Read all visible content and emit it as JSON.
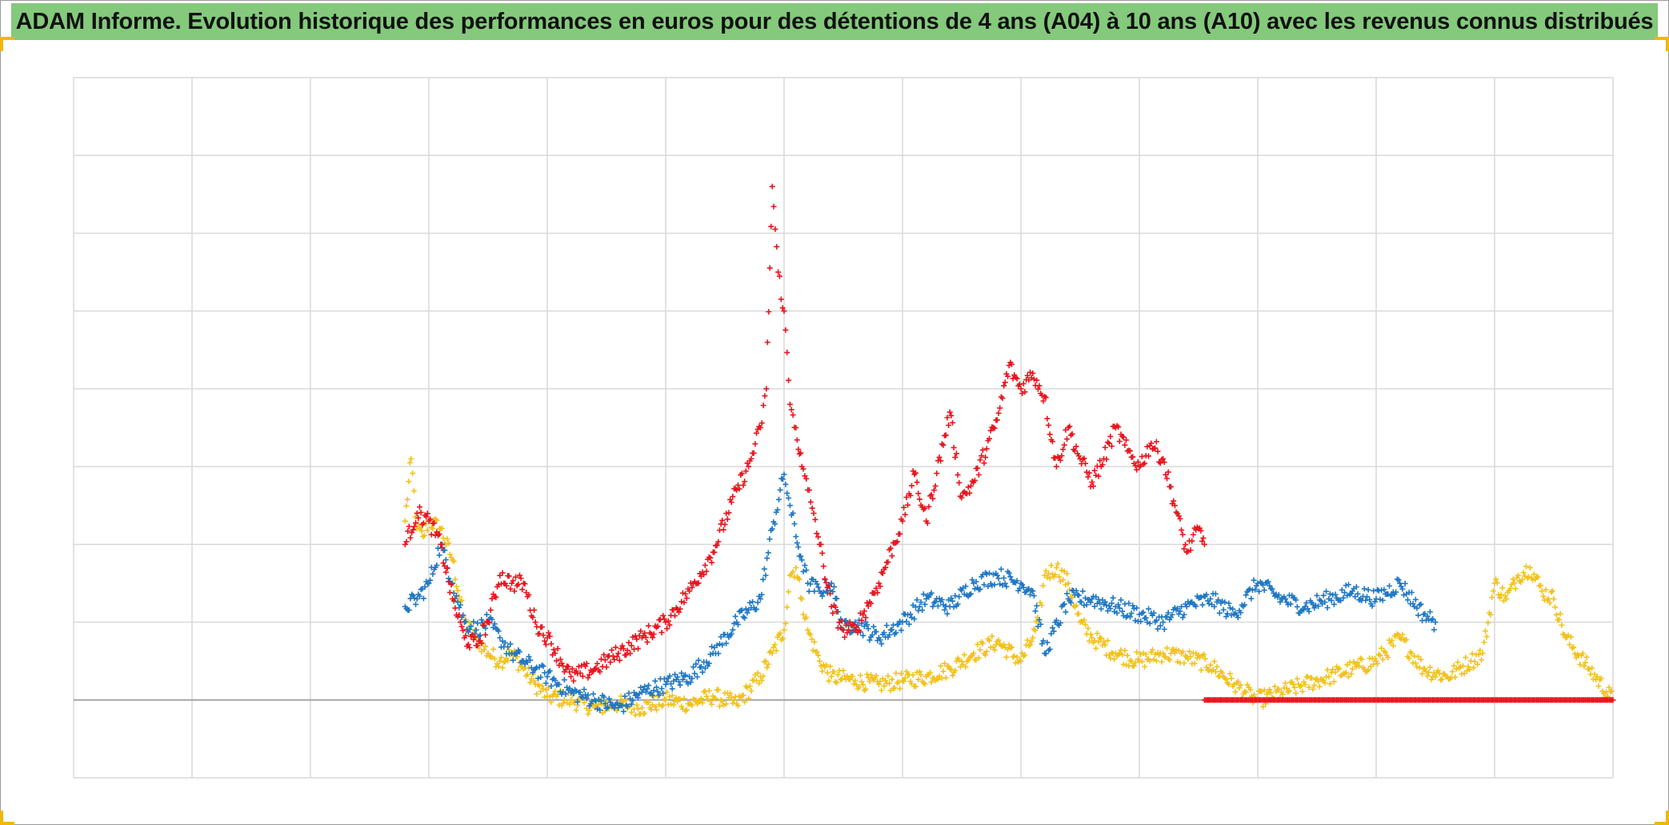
{
  "title": "ADAM Informe. Evolution historique des performances en euros pour des détentions de 4 ans (A04) à 10 ans (A10) avec les revenus connus distribués",
  "colors": {
    "title_bar": "#84c97c",
    "accent_corner": "#f2b705",
    "grid": "#d9d9d9",
    "zero_line": "#a6a6a6"
  },
  "chart_data": {
    "type": "scatter",
    "marker": "plus",
    "title": "ADAM Informe. Evolution historique des performances en euros pour des détentions de 4 ans (A04) à 10 ans (A10) avec les revenus connus distribués",
    "xlabel": "",
    "ylabel": "",
    "tick_labels_visible": false,
    "xlim": [
      0,
      13
    ],
    "ylim": [
      -1,
      8
    ],
    "grid": true,
    "legend": "none",
    "series": [
      {
        "color": "#f2c21b",
        "x": [
          2.8,
          2.85,
          2.9,
          2.95,
          3.0,
          3.1,
          3.2,
          3.3,
          3.4,
          3.5,
          3.6,
          3.7,
          3.8,
          3.9,
          4.0,
          4.2,
          4.4,
          4.6,
          4.8,
          5.0,
          5.2,
          5.4,
          5.6,
          5.8,
          5.9,
          6.0,
          6.05,
          6.1,
          6.15,
          6.2,
          6.3,
          6.4,
          6.6,
          6.8,
          7.0,
          7.2,
          7.4,
          7.6,
          7.8,
          8.0,
          8.1,
          8.15,
          8.2,
          8.3,
          8.4,
          8.5,
          8.6,
          8.8,
          9.0,
          9.2,
          9.4,
          9.6,
          9.8,
          9.9,
          9.95,
          10.0,
          10.2,
          10.4,
          10.6,
          10.8,
          11.0,
          11.2,
          11.4,
          11.6,
          11.8,
          11.9,
          12.0,
          12.1,
          12.2,
          12.3,
          12.4,
          12.5,
          12.6,
          12.8,
          13.0
        ],
        "y": [
          2.3,
          3.1,
          2.2,
          2.1,
          2.3,
          2.2,
          1.8,
          1.0,
          0.8,
          0.6,
          0.5,
          0.6,
          0.4,
          0.2,
          0.05,
          0.0,
          -0.1,
          -0.05,
          -0.1,
          0.0,
          -0.05,
          0.05,
          -0.05,
          0.3,
          0.6,
          0.9,
          1.6,
          1.7,
          1.3,
          0.9,
          0.5,
          0.3,
          0.25,
          0.2,
          0.25,
          0.3,
          0.4,
          0.6,
          0.75,
          0.5,
          0.8,
          1.0,
          1.6,
          1.7,
          1.5,
          1.0,
          0.8,
          0.6,
          0.5,
          0.6,
          0.55,
          0.45,
          0.2,
          0.1,
          0.05,
          0.0,
          0.1,
          0.2,
          0.3,
          0.4,
          0.5,
          0.8,
          0.4,
          0.3,
          0.5,
          0.6,
          1.5,
          1.3,
          1.6,
          1.7,
          1.4,
          1.3,
          0.8,
          0.4,
          0.0
        ]
      },
      {
        "color": "#1f77c4",
        "x": [
          2.8,
          2.9,
          3.0,
          3.1,
          3.2,
          3.3,
          3.4,
          3.5,
          3.6,
          3.7,
          3.8,
          3.9,
          4.0,
          4.2,
          4.4,
          4.6,
          4.8,
          5.0,
          5.2,
          5.4,
          5.6,
          5.8,
          5.9,
          6.0,
          6.05,
          6.1,
          6.15,
          6.2,
          6.3,
          6.4,
          6.5,
          6.6,
          6.8,
          7.0,
          7.2,
          7.4,
          7.6,
          7.8,
          8.0,
          8.1,
          8.2,
          8.4,
          8.6,
          8.8,
          9.0,
          9.2,
          9.4,
          9.6,
          9.8,
          10.0,
          10.2,
          10.4,
          10.6,
          10.8,
          11.0,
          11.2,
          11.4,
          11.5
        ],
        "y": [
          1.2,
          1.3,
          1.5,
          2.0,
          1.5,
          1.0,
          0.9,
          1.0,
          0.8,
          0.6,
          0.5,
          0.4,
          0.3,
          0.1,
          0.0,
          -0.1,
          0.1,
          0.2,
          0.3,
          0.6,
          1.0,
          1.3,
          2.2,
          2.9,
          2.5,
          2.1,
          1.8,
          1.5,
          1.4,
          1.5,
          0.9,
          1.0,
          0.8,
          1.0,
          1.3,
          1.2,
          1.5,
          1.6,
          1.5,
          1.4,
          0.6,
          1.3,
          1.3,
          1.2,
          1.1,
          1.0,
          1.2,
          1.3,
          1.1,
          1.5,
          1.3,
          1.2,
          1.3,
          1.4,
          1.3,
          1.5,
          1.1,
          1.0
        ]
      },
      {
        "color": "#e8141c",
        "x": [
          2.8,
          2.9,
          3.0,
          3.1,
          3.2,
          3.3,
          3.4,
          3.5,
          3.6,
          3.7,
          3.8,
          3.9,
          4.0,
          4.2,
          4.4,
          4.6,
          4.8,
          5.0,
          5.2,
          5.4,
          5.6,
          5.7,
          5.8,
          5.85,
          5.9,
          5.95,
          6.0,
          6.05,
          6.1,
          6.15,
          6.2,
          6.25,
          6.3,
          6.4,
          6.5,
          6.6,
          6.8,
          7.0,
          7.1,
          7.2,
          7.4,
          7.5,
          7.6,
          7.8,
          7.9,
          8.0,
          8.1,
          8.2,
          8.3,
          8.4,
          8.5,
          8.6,
          8.7,
          8.8,
          8.9,
          9.0,
          9.1,
          9.2,
          9.3,
          9.4,
          9.5,
          9.55
        ],
        "y": [
          2.0,
          2.4,
          2.3,
          2.0,
          1.3,
          0.8,
          0.7,
          1.0,
          1.6,
          1.5,
          1.5,
          1.0,
          0.8,
          0.3,
          0.4,
          0.6,
          0.8,
          1.0,
          1.4,
          1.9,
          2.7,
          3.0,
          3.5,
          4.0,
          6.6,
          5.5,
          5.0,
          3.8,
          3.5,
          3.0,
          2.7,
          2.4,
          2.0,
          1.2,
          0.9,
          0.9,
          1.5,
          2.3,
          2.9,
          2.3,
          3.7,
          2.6,
          2.8,
          3.6,
          4.3,
          4.0,
          4.2,
          3.9,
          3.0,
          3.5,
          3.1,
          2.8,
          3.1,
          3.5,
          3.2,
          3.0,
          3.3,
          3.1,
          2.5,
          1.9,
          2.2,
          2.0
        ]
      },
      {
        "color": "#e8141c",
        "x": [
          9.55,
          9.8,
          10.0,
          10.2,
          10.4,
          10.6,
          10.8,
          11.0,
          11.2,
          11.4,
          11.6,
          11.8,
          12.0,
          12.2,
          12.4,
          12.6,
          12.8,
          13.0
        ],
        "y": [
          0,
          0,
          0,
          0,
          0,
          0,
          0,
          0,
          0,
          0,
          0,
          0,
          0,
          0,
          0,
          0,
          0,
          0
        ]
      }
    ]
  }
}
